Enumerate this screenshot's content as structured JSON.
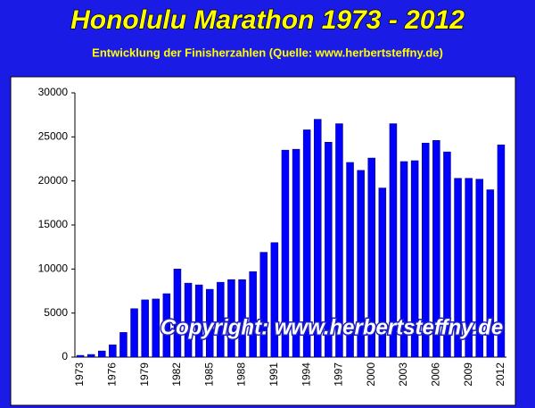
{
  "chart_data": {
    "type": "bar",
    "title": "Honolulu Marathon 1973 - 2012",
    "subtitle": "Entwicklung der Finisherzahlen (Quelle: www.herbertsteffny.de)",
    "annotations": [
      "Copyright: www.herbertsteffny.de"
    ],
    "categories": [
      "1973",
      null,
      null,
      "1976",
      null,
      null,
      "1979",
      null,
      null,
      "1982",
      null,
      null,
      "1985",
      null,
      null,
      "1988",
      null,
      null,
      "1991",
      null,
      null,
      "1994",
      null,
      null,
      "1997",
      null,
      null,
      "2000",
      null,
      null,
      "2003",
      null,
      null,
      "2006",
      null,
      null,
      "2009",
      null,
      null,
      "2012"
    ],
    "values": [
      200,
      300,
      700,
      1400,
      2800,
      5500,
      6500,
      6600,
      7200,
      10000,
      8400,
      8200,
      7700,
      8500,
      8800,
      8800,
      9700,
      11900,
      13000,
      23500,
      23600,
      25800,
      27000,
      24400,
      26500,
      22100,
      21200,
      22600,
      19200,
      26500,
      22200,
      22300,
      24300,
      24600,
      23300,
      20300,
      20300,
      20200,
      19000,
      24100
    ],
    "color": "#0000ff",
    "ylim": [
      0,
      30000
    ],
    "yticks": [
      0,
      5000,
      10000,
      15000,
      20000,
      25000,
      30000
    ],
    "grid": false
  }
}
